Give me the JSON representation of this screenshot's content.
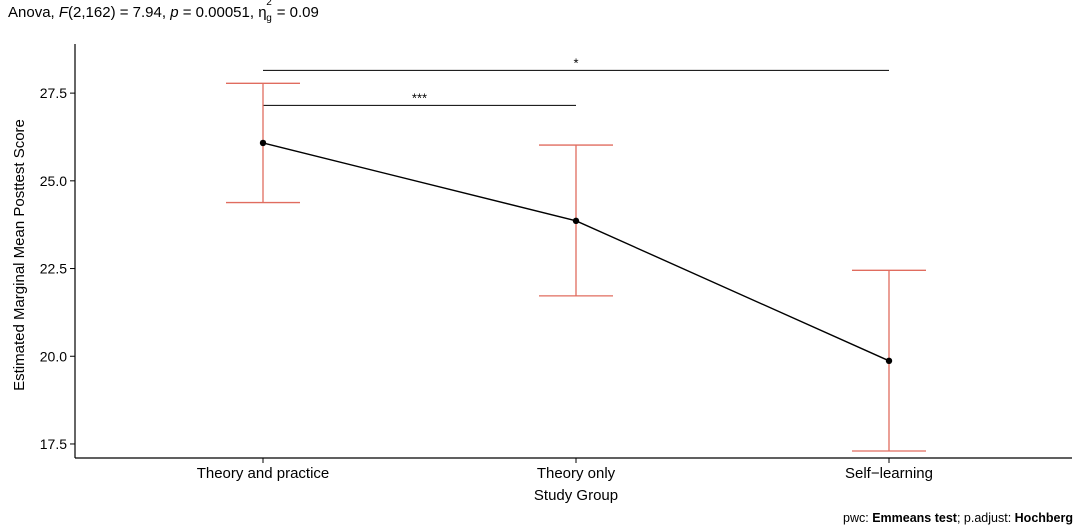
{
  "chart_data": {
    "type": "line",
    "title": {
      "prefix": "Anova, ",
      "stat_symbol": "F",
      "stat_df": "(2,162) = 7.94, ",
      "p_symbol": "p",
      "p_value": " = 0.00051, ",
      "eta_symbol": "η",
      "eta_sup": "2",
      "eta_sub": "g",
      "eta_value": " = 0.09"
    },
    "xlabel": "Study Group",
    "ylabel": "Estimated Marginal Mean Posttest Score",
    "categories": [
      "Theory and practice",
      "Theory only",
      "Self−learning"
    ],
    "means": [
      26.08,
      23.86,
      19.87
    ],
    "ci_lower": [
      24.38,
      21.72,
      17.3
    ],
    "ci_upper": [
      27.78,
      26.02,
      22.45
    ],
    "y_ticks": [
      "17.5",
      "20.0",
      "22.5",
      "25.0",
      "27.5"
    ],
    "ylim": [
      17.1,
      28.9
    ],
    "grid": false,
    "significance": [
      {
        "from": 0,
        "to": 2,
        "label": "*",
        "y": 28.15
      },
      {
        "from": 0,
        "to": 1,
        "label": "***",
        "y": 27.15
      }
    ],
    "line_color": "#000000",
    "point_color": "#000000",
    "errorbar_color": "#e06c5f",
    "caption": {
      "pwc_label": "pwc: ",
      "pwc_method": "Emmeans test",
      "adjust_label": "; p.adjust: ",
      "adjust_method": "Hochberg"
    }
  }
}
